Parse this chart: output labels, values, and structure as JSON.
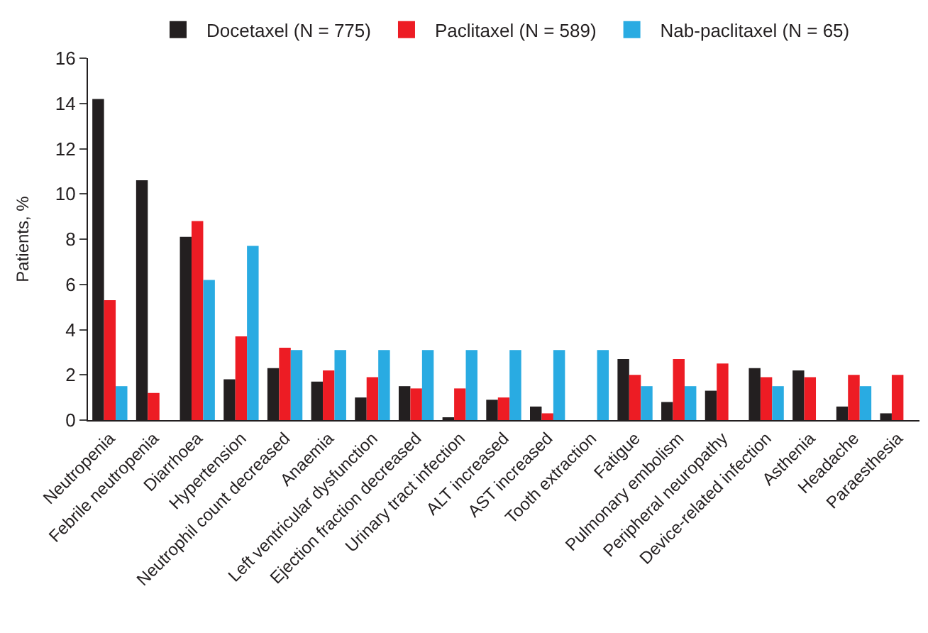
{
  "chart_data": {
    "type": "bar",
    "ylabel": "Patients, %",
    "categories": [
      "Neutropenia",
      "Febrile neutropenia",
      "Diarrhoea",
      "Hypertension",
      "Neutrophil count decreased",
      "Anaemia",
      "Left ventricular dysfunction",
      "Ejection fraction decreased",
      "Urinary tract infection",
      "ALT increased",
      "AST increased",
      "Tooth extraction",
      "Fatigue",
      "Pulmonary embolism",
      "Peripheral neuropathy",
      "Device-related infection",
      "Asthenia",
      "Headache",
      "Paraesthesia"
    ],
    "series": [
      {
        "name": "Docetaxel (N = 775)",
        "color": "#231f20",
        "values": [
          14.2,
          10.6,
          8.1,
          1.8,
          2.3,
          1.7,
          1.0,
          1.5,
          0.1,
          0.9,
          0.6,
          null,
          2.7,
          0.8,
          1.3,
          2.3,
          2.2,
          0.6,
          0.3
        ]
      },
      {
        "name": "Paclitaxel (N = 589)",
        "color": "#ed1c24",
        "values": [
          5.3,
          1.2,
          8.8,
          3.7,
          3.2,
          2.2,
          1.9,
          1.4,
          1.4,
          1.0,
          0.3,
          null,
          2.0,
          2.7,
          2.5,
          1.9,
          1.9,
          2.0,
          2.0
        ]
      },
      {
        "name": "Nab-paclitaxel (N = 65)",
        "color": "#29abe2",
        "values": [
          1.5,
          null,
          6.2,
          7.7,
          3.1,
          3.1,
          3.1,
          3.1,
          3.1,
          3.1,
          3.1,
          3.1,
          1.5,
          1.5,
          null,
          1.5,
          null,
          1.5,
          null
        ]
      }
    ],
    "ylim": [
      0,
      16
    ],
    "yticks": [
      0,
      2,
      4,
      6,
      8,
      10,
      12,
      14,
      16
    ],
    "legend": "top"
  }
}
